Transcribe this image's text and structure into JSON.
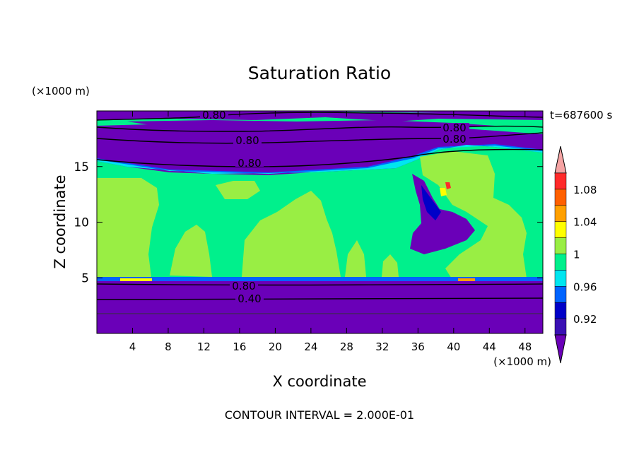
{
  "chart_data": {
    "type": "heatmap",
    "title": "Saturation Ratio",
    "xlabel": "X coordinate",
    "ylabel": "Z coordinate",
    "x_unit": "(×1000 m)",
    "y_unit": "(×1000 m)",
    "time_label": "t=687600 s",
    "footer": "CONTOUR INTERVAL = 2.000E-01",
    "xlim": [
      0,
      50
    ],
    "ylim": [
      0,
      20
    ],
    "x_ticks": [
      4,
      8,
      12,
      16,
      20,
      24,
      28,
      32,
      36,
      40,
      44,
      48
    ],
    "y_ticks": [
      5,
      10,
      15
    ],
    "colorbar": {
      "bins": [
        {
          "range": "<0.90",
          "color": "#6a00b8"
        },
        {
          "range": "0.90-0.92",
          "color": "#3a10b4"
        },
        {
          "range": "0.92-0.94",
          "color": "#0000c8"
        },
        {
          "range": "0.94-0.96",
          "color": "#0064ff"
        },
        {
          "range": "0.96-0.98",
          "color": "#00e6f0"
        },
        {
          "range": "0.98-1.00",
          "color": "#00f08c"
        },
        {
          "range": "1.00-1.02",
          "color": "#99ee44"
        },
        {
          "range": "1.02-1.04",
          "color": "#ffff00"
        },
        {
          "range": "1.04-1.06",
          "color": "#ffa000"
        },
        {
          "range": "1.06-1.08",
          "color": "#ff6000"
        },
        {
          "range": "1.08-1.10",
          "color": "#ff2a2a"
        },
        {
          "range": ">1.10",
          "color": "#f5a3a3"
        }
      ],
      "labels": [
        "1.08",
        "1.04",
        "1",
        "0.96",
        "0.92"
      ]
    },
    "contour_labels": [
      "0.80",
      "0.80",
      "0.80",
      "0.80",
      "0.80",
      "0.80",
      "0.40"
    ],
    "regions": {
      "surface_layer": {
        "z": [
          0,
          4.8
        ],
        "value": "<0.90"
      },
      "mid_layer": {
        "z": [
          4.8,
          15.5
        ],
        "values": [
          "0.98-1.00",
          "1.00-1.02"
        ]
      },
      "upper_dry_band": {
        "z": [
          15.5,
          18
        ],
        "value": "<0.90"
      },
      "top_layer": {
        "z": [
          18,
          20
        ],
        "values": [
          "<0.90",
          "0.98-1.00"
        ]
      }
    }
  }
}
